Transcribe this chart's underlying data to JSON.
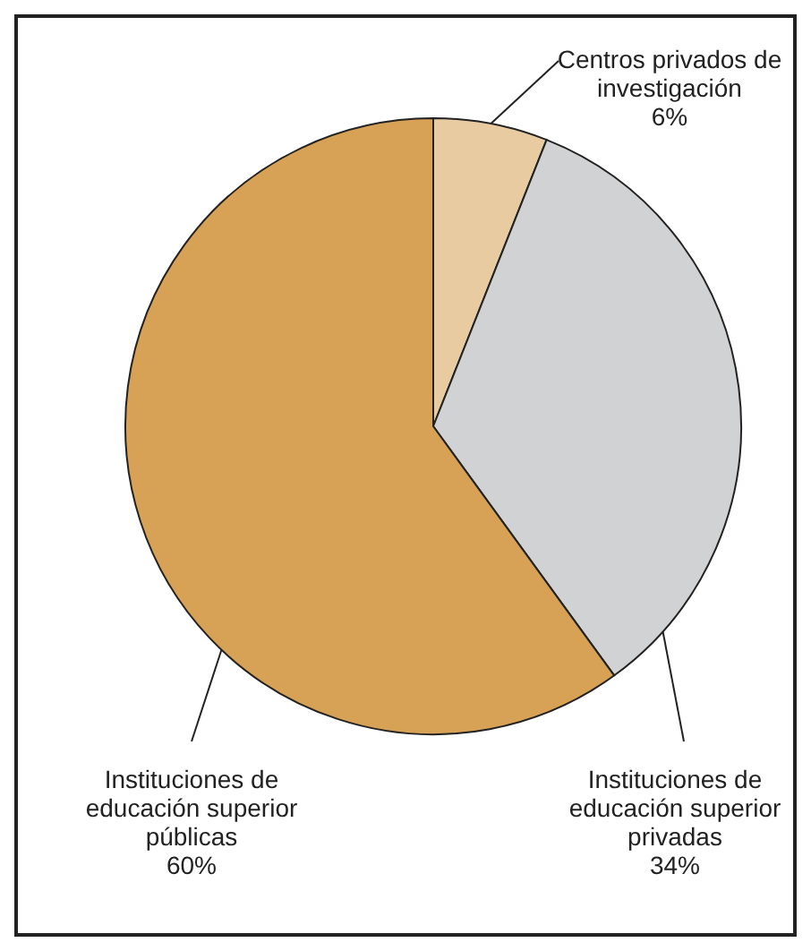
{
  "chart_data": {
    "type": "pie",
    "categories": [
      "Centros privados de\ninvestigación",
      "Instituciones de\neducación superior\nprivadas",
      "Instituciones de\neducación superior\npúblicas"
    ],
    "values": [
      6,
      34,
      60
    ],
    "value_labels": [
      "6%",
      "34%",
      "60%"
    ],
    "colors": [
      "#e8cba0",
      "#d1d2d4",
      "#d7a156"
    ]
  }
}
